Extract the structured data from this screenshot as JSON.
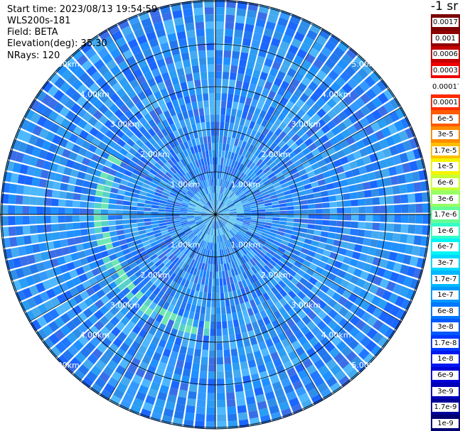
{
  "header": {
    "start_time": "Start time: 2023/08/13 19:54:59",
    "device": "WLS200s-181",
    "field": "Field: BETA",
    "elevation": "Elevation(deg): 35.30",
    "nrays": "NRays: 120"
  },
  "colorbar": {
    "unit": "-1 sr",
    "labels": [
      "0.0017",
      "0.001",
      "0.0006",
      "0.0003",
      "0.00017",
      "0.0001",
      "6e-5",
      "3e-5",
      "1.7e-5",
      "1e-5",
      "6e-6",
      "3e-6",
      "1.7e-6",
      "1e-6",
      "6e-7",
      "3e-7",
      "1.7e-7",
      "1e-7",
      "6e-8",
      "3e-8",
      "1.7e-8",
      "1e-8",
      "6e-9",
      "3e-9",
      "1.7e-9",
      "1e-9"
    ],
    "colors": [
      "#7b0000",
      "#8e0000",
      "#c40000",
      "#f00000",
      "#ffffff",
      "#ff2a00",
      "#ff5a00",
      "#ff8c00",
      "#ffbe00",
      "#f4f400",
      "#c8ff32",
      "#96ff64",
      "#64ff96",
      "#32ffc8",
      "#00f4f4",
      "#00d8ff",
      "#00b8ff",
      "#0098ff",
      "#0078ff",
      "#0058ff",
      "#0038ff",
      "#0018f0",
      "#0000d8",
      "#0000b8",
      "#000098",
      "#000070"
    ]
  },
  "range_labels": [
    {
      "text": "1.00km",
      "quadrant": "nw",
      "ring": 1
    },
    {
      "text": "1.00km",
      "quadrant": "ne",
      "ring": 1
    },
    {
      "text": "1.00km",
      "quadrant": "sw",
      "ring": 1
    },
    {
      "text": "1.00km",
      "quadrant": "se",
      "ring": 1
    },
    {
      "text": "2.00km",
      "quadrant": "nw",
      "ring": 2
    },
    {
      "text": "2.00km",
      "quadrant": "ne",
      "ring": 2
    },
    {
      "text": "2.00km",
      "quadrant": "sw",
      "ring": 2
    },
    {
      "text": "2.00km",
      "quadrant": "se",
      "ring": 2
    },
    {
      "text": "3.00km",
      "quadrant": "nw",
      "ring": 3
    },
    {
      "text": "3.00km",
      "quadrant": "ne",
      "ring": 3
    },
    {
      "text": "3.00km",
      "quadrant": "sw",
      "ring": 3
    },
    {
      "text": "3.00km",
      "quadrant": "se",
      "ring": 3
    },
    {
      "text": "4.00km",
      "quadrant": "nw",
      "ring": 4
    },
    {
      "text": "4.00km",
      "quadrant": "ne",
      "ring": 4
    },
    {
      "text": "4.00km",
      "quadrant": "sw",
      "ring": 4
    },
    {
      "text": "4.00km",
      "quadrant": "se",
      "ring": 4
    },
    {
      "text": "5.00km",
      "quadrant": "nw",
      "ring": 5
    },
    {
      "text": "5.00km",
      "quadrant": "ne",
      "ring": 5
    },
    {
      "text": "5.00km",
      "quadrant": "sw",
      "ring": 5
    },
    {
      "text": "5.00km",
      "quadrant": "se",
      "ring": 5
    }
  ]
}
